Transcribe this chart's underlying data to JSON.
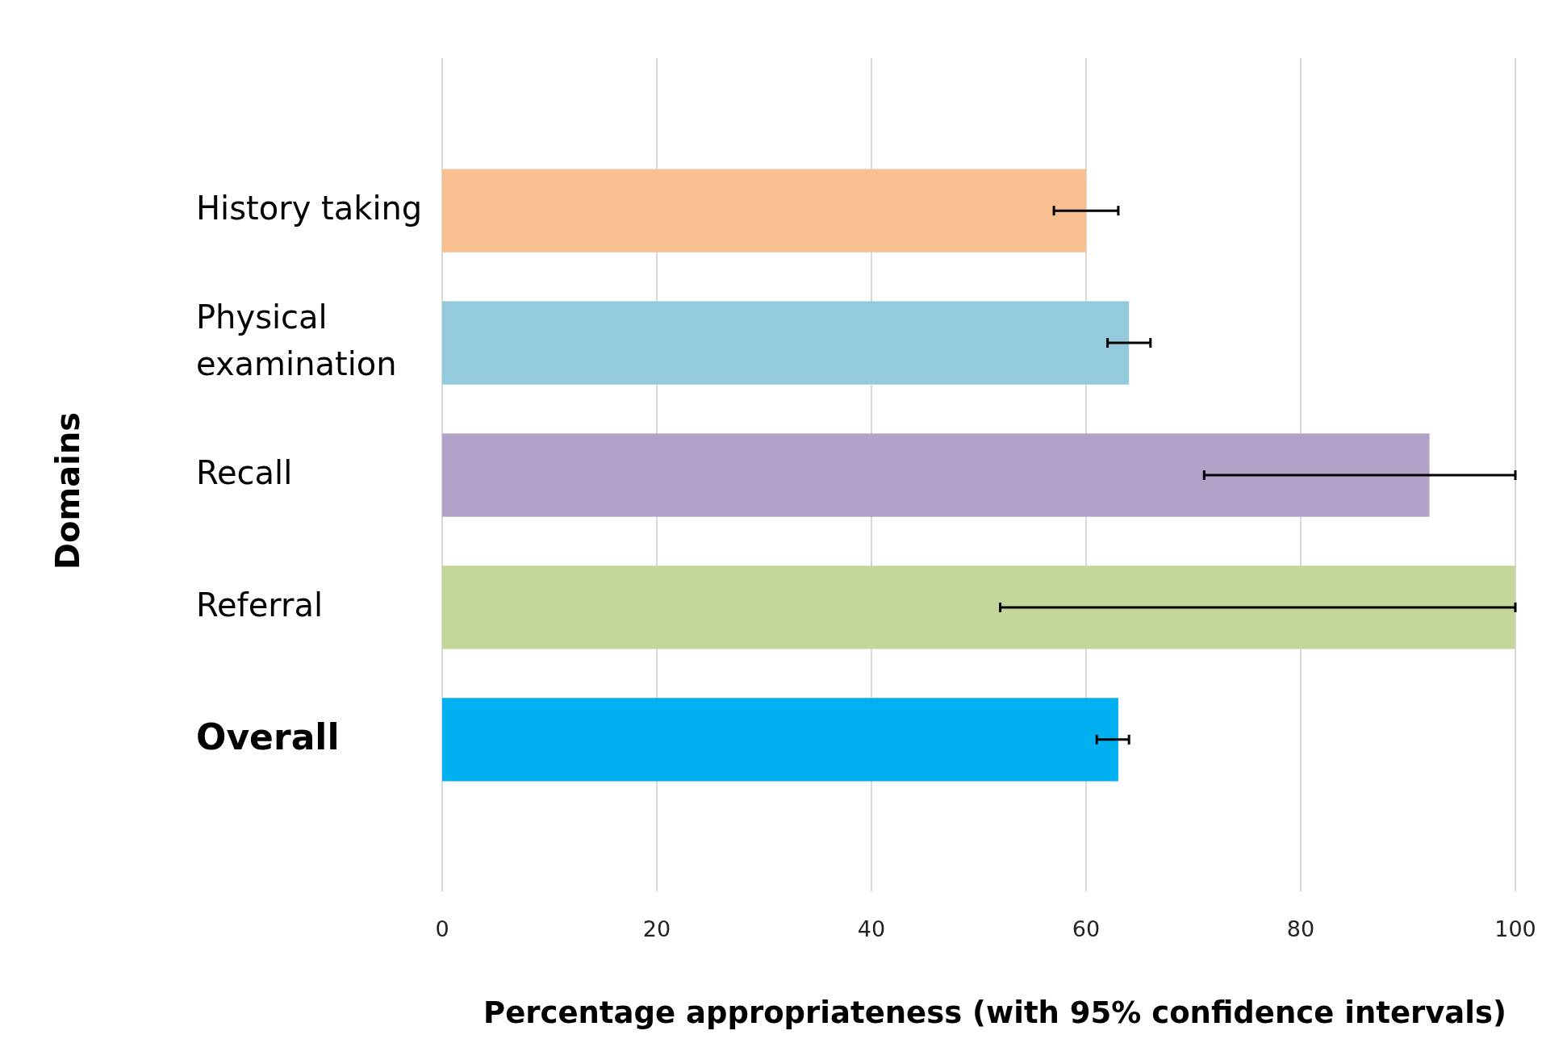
{
  "chart_data": {
    "type": "bar",
    "orientation": "horizontal",
    "xlabel": "Percentage appropriateness (with 95% confidence intervals)",
    "ylabel": "Domains",
    "categories": [
      "History taking",
      "Physical examination",
      "Recall",
      "Referral",
      "Overall"
    ],
    "values": [
      60,
      64,
      92,
      100,
      63
    ],
    "colors": [
      "#f8c090",
      "#94cbdc",
      "#b3a2c7",
      "#c4d79b",
      "#00b0f0"
    ],
    "errors": [
      [
        57,
        63
      ],
      [
        62,
        66
      ],
      [
        71,
        100
      ],
      [
        52,
        100
      ],
      [
        61,
        64
      ]
    ],
    "xlim": [
      0,
      100
    ],
    "xticks": [
      0,
      20,
      40,
      60,
      80,
      100
    ],
    "grid": "x"
  }
}
